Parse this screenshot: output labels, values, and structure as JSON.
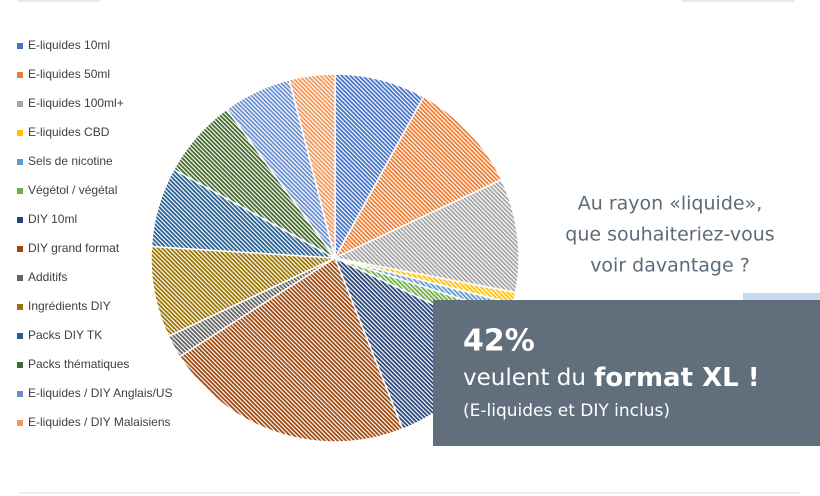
{
  "chart_data": {
    "type": "pie",
    "categories": [
      "E-liquides 10ml",
      "E-liquides 50ml",
      "E-liquides 100ml+",
      "E-liquides CBD",
      "Sels de nicotine",
      "Végétol / végétal",
      "DIY 10ml",
      "DIY grand format",
      "Additifs",
      "Ingrédients DIY",
      "Packs DIY TK",
      "Packs thématiques",
      "E-liquides / DIY Anglais/US",
      "E-liquides / DIY Malaisiens"
    ],
    "values": [
      8,
      10,
      10,
      1,
      1,
      2,
      12,
      22,
      2,
      8,
      7,
      7,
      6,
      4
    ],
    "colors": [
      "#4472c4",
      "#ed7d31",
      "#a5a5a5",
      "#ffc000",
      "#5b9bd5",
      "#70ad47",
      "#264478",
      "#9e480e",
      "#636363",
      "#997300",
      "#255e91",
      "#43682b",
      "#698ed0",
      "#f1975a"
    ]
  },
  "question": [
    "Au rayon «liquide»,",
    "que souhaiteriez-vous",
    "voir davantage ?"
  ],
  "callout": {
    "figure": "42%",
    "text": "veulent du",
    "emphasis": "format XL !",
    "note": "(E-liquides et DIY inclus)"
  }
}
